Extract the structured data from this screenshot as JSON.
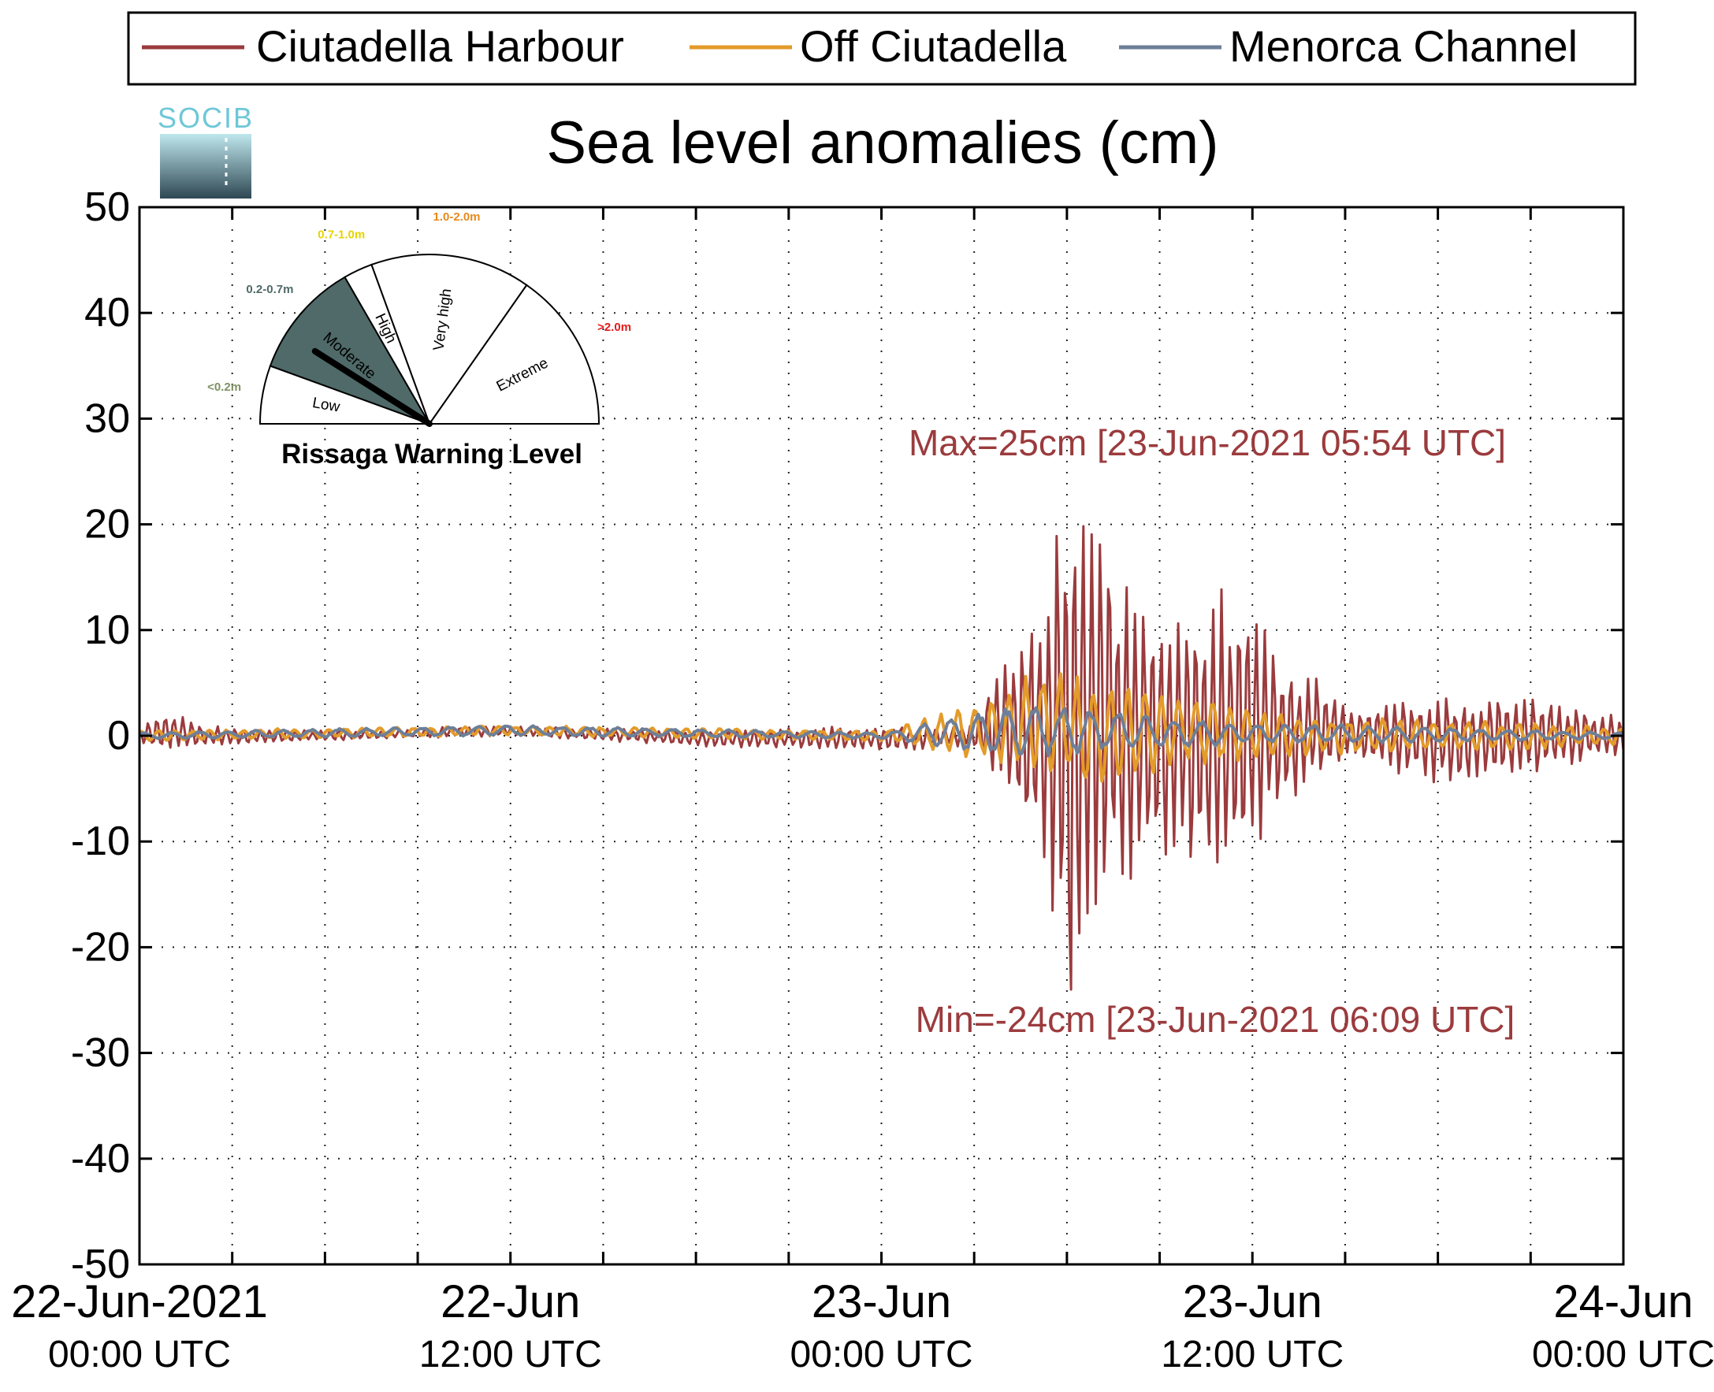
{
  "colors": {
    "harbour": "#9b3b3d",
    "off": "#e39b2a",
    "channel": "#6d7f99",
    "annotation": "#9b3b3d",
    "gauge_fill": "#4f6a68",
    "socib_text": "#6fc7d8",
    "socib_bg_top": "#bfe7ee",
    "socib_bg_bottom": "#2f4853"
  },
  "logo": {
    "text": "SOCIB"
  },
  "chart_data": {
    "type": "line",
    "title": "Sea level anomalies (cm)",
    "xlabel": "",
    "ylabel": "",
    "ylim": [
      -50,
      50
    ],
    "yticks": [
      50,
      40,
      30,
      20,
      10,
      0,
      -10,
      -20,
      -30,
      -40,
      -50
    ],
    "xlim": [
      "2021-06-22T00:00Z",
      "2021-06-24T00:00Z"
    ],
    "xticks": [
      {
        "time": "2021-06-22T00:00Z",
        "line1": "22-Jun-2021",
        "line2": "00:00 UTC"
      },
      {
        "time": "2021-06-22T12:00Z",
        "line1": "22-Jun",
        "line2": "12:00 UTC"
      },
      {
        "time": "2021-06-23T00:00Z",
        "line1": "23-Jun",
        "line2": "00:00 UTC"
      },
      {
        "time": "2021-06-23T12:00Z",
        "line1": "23-Jun",
        "line2": "12:00 UTC"
      },
      {
        "time": "2021-06-24T00:00Z",
        "line1": "24-Jun",
        "line2": "00:00 UTC"
      }
    ],
    "grid": true,
    "legend_position": "top",
    "series": [
      {
        "name": "Ciutadella Harbour",
        "color_key": "harbour",
        "envelope": [
          {
            "time": "2021-06-22T00:00Z",
            "min": -1,
            "max": 1
          },
          {
            "time": "2021-06-22T01:00Z",
            "min": -1.5,
            "max": 2.5
          },
          {
            "time": "2021-06-22T02:00Z",
            "min": -1,
            "max": 1
          },
          {
            "time": "2021-06-22T06:00Z",
            "min": -0.5,
            "max": 0.5
          },
          {
            "time": "2021-06-22T12:00Z",
            "min": 0,
            "max": 1
          },
          {
            "time": "2021-06-22T18:00Z",
            "min": -1,
            "max": 0.5
          },
          {
            "time": "2021-06-23T00:00Z",
            "min": -1.5,
            "max": 1
          },
          {
            "time": "2021-06-23T03:00Z",
            "min": -1,
            "max": 1
          },
          {
            "time": "2021-06-23T04:00Z",
            "min": -7,
            "max": 9
          },
          {
            "time": "2021-06-23T05:00Z",
            "min": -12,
            "max": 12
          },
          {
            "time": "2021-06-23T05:54Z",
            "min": -24,
            "max": 25
          },
          {
            "time": "2021-06-23T06:09Z",
            "min": -24,
            "max": 24
          },
          {
            "time": "2021-06-23T07:00Z",
            "min": -17,
            "max": 21
          },
          {
            "time": "2021-06-23T08:00Z",
            "min": -15,
            "max": 15
          },
          {
            "time": "2021-06-23T09:00Z",
            "min": -12,
            "max": 12
          },
          {
            "time": "2021-06-23T10:00Z",
            "min": -14,
            "max": 14
          },
          {
            "time": "2021-06-23T11:00Z",
            "min": -16,
            "max": 15
          },
          {
            "time": "2021-06-23T12:00Z",
            "min": -11,
            "max": 12
          },
          {
            "time": "2021-06-23T13:00Z",
            "min": -7,
            "max": 7
          },
          {
            "time": "2021-06-23T14:00Z",
            "min": -5,
            "max": 6
          },
          {
            "time": "2021-06-23T15:00Z",
            "min": -2,
            "max": 3
          },
          {
            "time": "2021-06-23T18:00Z",
            "min": -5,
            "max": 4
          },
          {
            "time": "2021-06-23T21:00Z",
            "min": -4,
            "max": 4
          },
          {
            "time": "2021-06-24T00:00Z",
            "min": -2,
            "max": 2
          }
        ]
      },
      {
        "name": "Off Ciutadella",
        "color_key": "off",
        "envelope": [
          {
            "time": "2021-06-22T00:00Z",
            "min": -0.5,
            "max": 0.5
          },
          {
            "time": "2021-06-22T12:00Z",
            "min": 0,
            "max": 1
          },
          {
            "time": "2021-06-23T00:00Z",
            "min": -0.5,
            "max": 0.5
          },
          {
            "time": "2021-06-23T04:00Z",
            "min": -3,
            "max": 4
          },
          {
            "time": "2021-06-23T05:00Z",
            "min": -4,
            "max": 7
          },
          {
            "time": "2021-06-23T07:00Z",
            "min": -5,
            "max": 5
          },
          {
            "time": "2021-06-23T10:00Z",
            "min": -3,
            "max": 4
          },
          {
            "time": "2021-06-23T13:00Z",
            "min": -2,
            "max": 2
          },
          {
            "time": "2021-06-24T00:00Z",
            "min": -1,
            "max": 1
          }
        ]
      },
      {
        "name": "Menorca Channel",
        "color_key": "channel",
        "envelope": [
          {
            "time": "2021-06-22T00:00Z",
            "min": -0.3,
            "max": 0.3
          },
          {
            "time": "2021-06-22T12:00Z",
            "min": 0,
            "max": 1
          },
          {
            "time": "2021-06-23T00:00Z",
            "min": -0.3,
            "max": 0.3
          },
          {
            "time": "2021-06-23T04:00Z",
            "min": -2,
            "max": 3
          },
          {
            "time": "2021-06-23T06:00Z",
            "min": -2,
            "max": 3
          },
          {
            "time": "2021-06-23T10:00Z",
            "min": -1,
            "max": 1.5
          },
          {
            "time": "2021-06-24T00:00Z",
            "min": -0.3,
            "max": 0.3
          }
        ]
      }
    ],
    "annotations": {
      "max_label": "Max=25cm [23-Jun-2021 05:54 UTC]",
      "min_label": "Min=-24cm [23-Jun-2021 06:09 UTC]",
      "max": {
        "time": "2021-06-23T05:54Z",
        "value": 25
      },
      "min": {
        "time": "2021-06-23T06:09Z",
        "value": -24
      }
    }
  },
  "gauge": {
    "title": "Rissaga Warning Level",
    "active_level": "Moderate",
    "needle_fraction": 0.18,
    "levels": [
      {
        "name": "Low",
        "range": "<0.2m",
        "range_color": "#7f9164"
      },
      {
        "name": "Moderate",
        "range": "0.2-0.7m",
        "range_color": "#4f6a68"
      },
      {
        "name": "High",
        "range": "0.7-1.0m",
        "range_color": "#e6d400"
      },
      {
        "name": "Very high",
        "range": "1.0-2.0m",
        "range_color": "#e8891b"
      },
      {
        "name": "Extreme",
        "range": ">2.0m",
        "range_color": "#e31b1b"
      }
    ]
  }
}
